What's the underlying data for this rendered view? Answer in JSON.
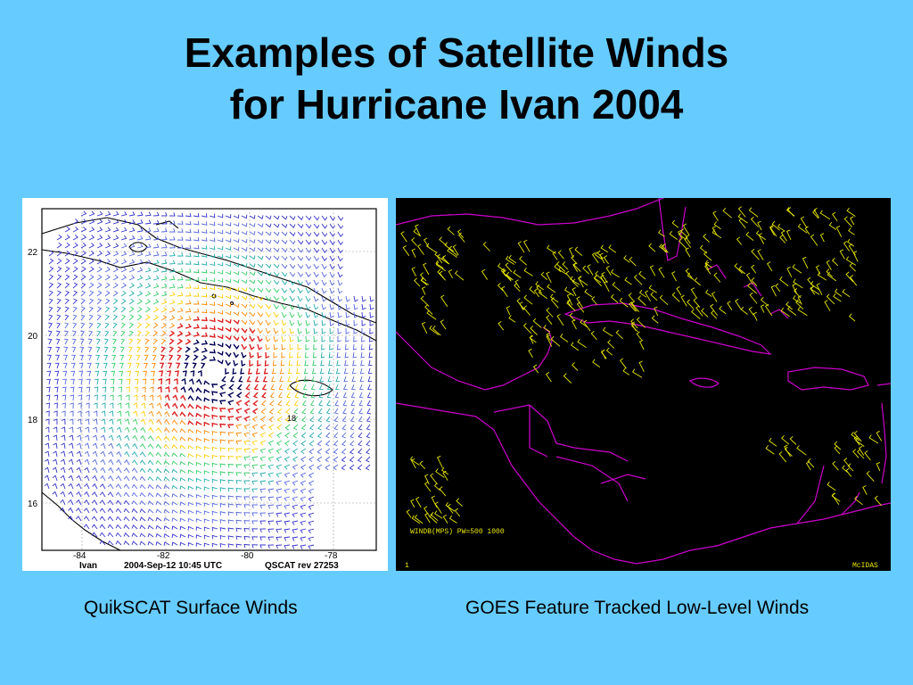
{
  "slide": {
    "title_line1": "Examples of Satellite Winds",
    "title_line2": "for Hurricane Ivan 2004",
    "caption_left": "QuikSCAT Surface Winds",
    "caption_right": "GOES Feature Tracked Low-Level Winds",
    "background_color": "#66CCFF"
  },
  "quikscat_map": {
    "y_ticks": [
      "22",
      "20",
      "18",
      "16"
    ],
    "x_ticks": [
      "-84",
      "-82",
      "-80",
      "-78"
    ],
    "footer_storm": "Ivan",
    "footer_datetime": "2004-Sep-12   10:45 UTC",
    "footer_rev": "QSCAT rev 27253",
    "map_label": "18",
    "palette": [
      "#3333CC",
      "#5566DD",
      "#22AAAA",
      "#33CC66",
      "#FFCC00",
      "#FF8800",
      "#DD2222",
      "#000055"
    ]
  },
  "goes_map": {
    "legend": "WINDB(MPS)  PW=500 1000",
    "frame_number": "1",
    "brand": "McIDAS",
    "barb_color": "#E8E800",
    "coast_color": "#CC00CC"
  }
}
